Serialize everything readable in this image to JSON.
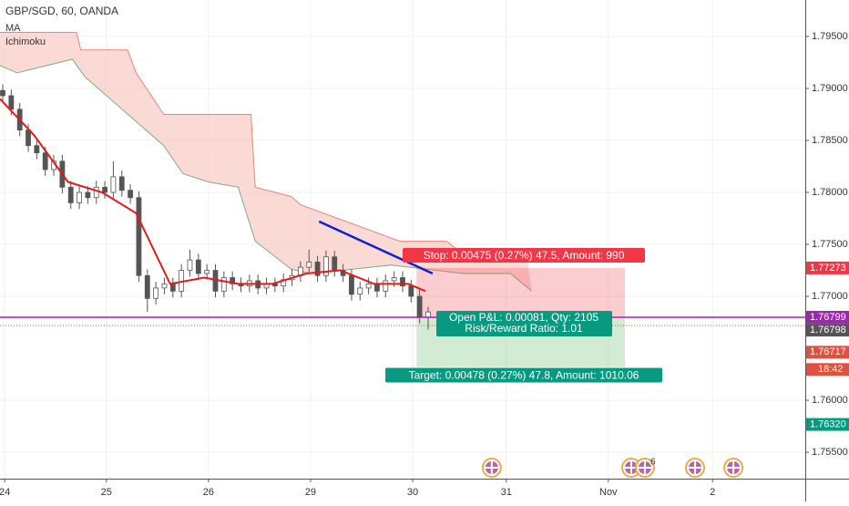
{
  "chart_data": {
    "type": "candlestick",
    "title": "GBP/SGD, 60, OANDA",
    "indicators": [
      "MA",
      "Ichimoku"
    ],
    "xlim": [
      0,
      189.3
    ],
    "ylim": [
      1.75246,
      1.79851
    ],
    "xticks": [
      {
        "value": 1.1,
        "label": "24"
      },
      {
        "value": 25,
        "label": "25"
      },
      {
        "value": 49,
        "label": "26"
      },
      {
        "value": 73,
        "label": "29"
      },
      {
        "value": 97,
        "label": "30"
      },
      {
        "value": 119,
        "label": "31"
      },
      {
        "value": 143,
        "label": "Nov"
      },
      {
        "value": 167.5,
        "label": "2"
      }
    ],
    "yticks": [
      {
        "value": 1.755,
        "label": "1.75500"
      },
      {
        "value": 1.76,
        "label": "1.76000"
      },
      {
        "value": 1.77,
        "label": "1.77000"
      },
      {
        "value": 1.775,
        "label": "1.77500"
      },
      {
        "value": 1.78,
        "label": "1.78000"
      },
      {
        "value": 1.785,
        "label": "1.78500"
      },
      {
        "value": 1.79,
        "label": "1.79000"
      },
      {
        "value": 1.795,
        "label": "1.79500"
      }
    ],
    "grid": true,
    "up_color": "#ffffff",
    "down_color": "#555555",
    "x": [
      0,
      2,
      4,
      6,
      8,
      10,
      12,
      14,
      16,
      18,
      20,
      22,
      24,
      26,
      28,
      30,
      32,
      34,
      36,
      38,
      40,
      42,
      44,
      46,
      48,
      50,
      52,
      54,
      56,
      58,
      60,
      62,
      64,
      66,
      68,
      70,
      72,
      74,
      76,
      78,
      80,
      82,
      84,
      86,
      88,
      90,
      92,
      94,
      96,
      98,
      100
    ],
    "open": [
      1.7898,
      1.7893,
      1.788,
      1.786,
      1.7845,
      1.7838,
      1.7822,
      1.783,
      1.7805,
      1.779,
      1.78,
      1.7795,
      1.7805,
      1.78,
      1.7815,
      1.7802,
      1.7795,
      1.772,
      1.7698,
      1.7708,
      1.7712,
      1.7705,
      1.7725,
      1.7735,
      1.7722,
      1.7725,
      1.7705,
      1.7718,
      1.7712,
      1.771,
      1.7715,
      1.7708,
      1.7712,
      1.771,
      1.7716,
      1.772,
      1.7728,
      1.7733,
      1.772,
      1.7738,
      1.7725,
      1.772,
      1.7702,
      1.7708,
      1.7712,
      1.7705,
      1.7715,
      1.7718,
      1.771,
      1.77,
      1.768
    ],
    "high": [
      1.7904,
      1.7899,
      1.7886,
      1.7866,
      1.7851,
      1.7844,
      1.7836,
      1.7836,
      1.7811,
      1.7806,
      1.7806,
      1.7811,
      1.7811,
      1.783,
      1.7821,
      1.7808,
      1.7801,
      1.7726,
      1.7714,
      1.7718,
      1.7718,
      1.7731,
      1.7745,
      1.7741,
      1.7731,
      1.7731,
      1.7724,
      1.7724,
      1.7718,
      1.7721,
      1.7721,
      1.7718,
      1.7718,
      1.7722,
      1.7726,
      1.7734,
      1.7745,
      1.7739,
      1.7744,
      1.7744,
      1.7731,
      1.7726,
      1.7714,
      1.7718,
      1.7718,
      1.7721,
      1.7724,
      1.7724,
      1.7716,
      1.7706,
      1.769
    ],
    "low": [
      1.7887,
      1.7874,
      1.7854,
      1.7839,
      1.7832,
      1.7816,
      1.7816,
      1.7799,
      1.7784,
      1.7784,
      1.7789,
      1.7789,
      1.7794,
      1.7794,
      1.7796,
      1.7789,
      1.7714,
      1.7685,
      1.7692,
      1.7702,
      1.7699,
      1.7699,
      1.7719,
      1.7716,
      1.7716,
      1.7699,
      1.7699,
      1.7706,
      1.7704,
      1.7704,
      1.7702,
      1.7702,
      1.7704,
      1.7704,
      1.771,
      1.7714,
      1.7722,
      1.7714,
      1.7714,
      1.7719,
      1.7714,
      1.7696,
      1.7696,
      1.7702,
      1.7699,
      1.7699,
      1.7709,
      1.7704,
      1.7694,
      1.7674,
      1.7668
    ],
    "close": [
      1.7893,
      1.788,
      1.786,
      1.7845,
      1.7838,
      1.7822,
      1.783,
      1.7805,
      1.779,
      1.78,
      1.7795,
      1.7805,
      1.78,
      1.7815,
      1.7802,
      1.7795,
      1.772,
      1.7698,
      1.7708,
      1.7712,
      1.7705,
      1.7725,
      1.7735,
      1.7722,
      1.7725,
      1.7705,
      1.7718,
      1.7712,
      1.771,
      1.7715,
      1.7708,
      1.7712,
      1.771,
      1.7716,
      1.772,
      1.7728,
      1.7733,
      1.772,
      1.7738,
      1.7725,
      1.772,
      1.7702,
      1.7708,
      1.7712,
      1.7705,
      1.7715,
      1.7718,
      1.771,
      1.77,
      1.768,
      1.7685
    ],
    "ma": {
      "color": "#e31a1c",
      "x": [
        0,
        8,
        16,
        24,
        32,
        40,
        48,
        56,
        64,
        72,
        80,
        88,
        96,
        100
      ],
      "values": [
        1.789,
        1.7855,
        1.781,
        1.78,
        1.778,
        1.7712,
        1.7718,
        1.7712,
        1.7712,
        1.7722,
        1.7725,
        1.7712,
        1.7712,
        1.7705
      ]
    },
    "cloud": {
      "upper_color": "#e8857a",
      "lower_color": "#7fae7f",
      "fill": "#f9c9c2",
      "x_upper": [
        0,
        18,
        19,
        30,
        32,
        38.5,
        59,
        60,
        68.5,
        70.7,
        94,
        105,
        109,
        124
      ],
      "upper": [
        1.7954,
        1.7954,
        1.7937,
        1.7937,
        1.7915,
        1.7875,
        1.7875,
        1.7805,
        1.7796,
        1.7788,
        1.7753,
        1.7753,
        1.774,
        1.7735
      ],
      "x_lower": [
        0,
        4,
        17,
        20,
        38.5,
        43,
        49,
        56,
        60,
        68.5,
        73,
        92,
        109,
        120,
        125
      ],
      "lower": [
        1.7922,
        1.7915,
        1.7928,
        1.7911,
        1.7845,
        1.7818,
        1.781,
        1.7805,
        1.7753,
        1.7726,
        1.7722,
        1.773,
        1.7722,
        1.7722,
        1.7705
      ]
    },
    "trendline": {
      "color": "#1020d0",
      "x": [
        75,
        101.7
      ],
      "values": [
        1.7772,
        1.7722
      ]
    },
    "position": {
      "x": [
        97.9,
        146.9
      ],
      "entry": 1.76799,
      "stop": 1.77273,
      "target": 1.7632,
      "stop_label": "Stop: 0.00475 (0.27%) 47.5, Amount: 990",
      "pnl_label": "Open P&L: 0.00081, Qty: 2105",
      "rr_label": "Risk/Reward Ratio: 1.01",
      "target_label": "Target: 0.00478 (0.27%) 47.8, Amount: 1010.06"
    },
    "last_price": 1.76798,
    "price_labels": [
      {
        "value": 1.77273,
        "label": "1.77273",
        "color": "#f23645"
      },
      {
        "value": 1.76799,
        "label": "1.76799",
        "color": "#9c27b0"
      },
      {
        "value": 1.76798,
        "label": "1.76798",
        "color": "#555555"
      },
      {
        "value": 1.76717,
        "label": "1.76717",
        "color": "#e0513f"
      },
      {
        "value": 1.7632,
        "label": "1.76320",
        "color": "#089981"
      }
    ],
    "countdown": "18:42",
    "events": {
      "x": [
        115.6,
        148.4,
        151.6,
        163.4,
        172.4
      ],
      "badge": "6"
    }
  }
}
